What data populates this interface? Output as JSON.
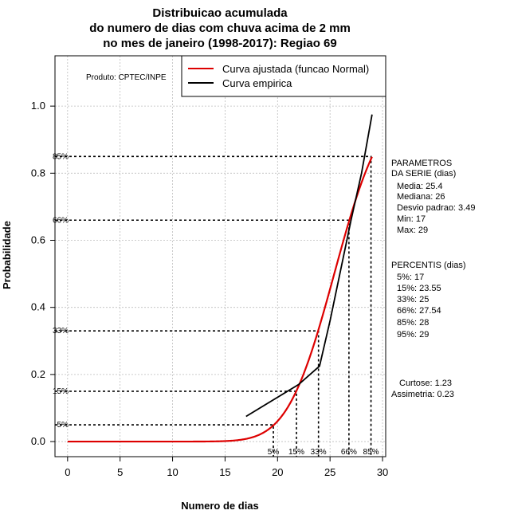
{
  "chart_data": {
    "type": "line",
    "title_lines": [
      "Distribuicao acumulada",
      "do numero de dias com chuva acima de 2 mm",
      "no mes de janeiro (1998-2017): Regiao 69"
    ],
    "xlabel": "Numero de dias",
    "ylabel": "Probabilidade",
    "xlim": [
      -1.2,
      30.3
    ],
    "ylim": [
      -0.045,
      1.15
    ],
    "x_ticks": [
      0,
      5,
      10,
      15,
      20,
      25,
      30
    ],
    "y_ticks": [
      0.0,
      0.2,
      0.4,
      0.6,
      0.8,
      1.0
    ],
    "y_tick_labels": [
      "0.0",
      "0.2",
      "0.4",
      "0.6",
      "0.8",
      "1.0"
    ],
    "grid": true,
    "credit": "Produto: CPTEC/INPE",
    "legend": {
      "position": "top-right",
      "entries": [
        {
          "label": "Curva ajustada (funcao Normal)",
          "color": "#dd0000"
        },
        {
          "label": "Curva empirica",
          "color": "#000000"
        }
      ]
    },
    "series": [
      {
        "name": "Curva ajustada (funcao Normal)",
        "color": "#dd0000",
        "distribution": "normal",
        "mean": 25.4,
        "sd": 3.49,
        "x_range": [
          0,
          29
        ]
      },
      {
        "name": "Curva empirica",
        "color": "#000000",
        "x": [
          17,
          22,
          24,
          25,
          26,
          27,
          28,
          29
        ],
        "y": [
          0.075,
          0.17,
          0.225,
          0.36,
          0.51,
          0.66,
          0.8,
          0.975
        ]
      }
    ],
    "percentile_lines": [
      {
        "label": "5%",
        "p": 0.05,
        "x": 19.6
      },
      {
        "label": "15%",
        "p": 0.15,
        "x": 21.8
      },
      {
        "label": "33%",
        "p": 0.33,
        "x": 23.9
      },
      {
        "label": "66%",
        "p": 0.66,
        "x": 26.8
      },
      {
        "label": "85%",
        "p": 0.85,
        "x": 28.9
      }
    ],
    "parametros": {
      "heading": [
        "PARAMETROS",
        "DA SERIE (dias)"
      ],
      "items": [
        "Media: 25.4",
        "Mediana: 26",
        "Desvio padrao: 3.49",
        "Min: 17",
        "Max: 29"
      ]
    },
    "percentis": {
      "heading": "PERCENTIS (dias)",
      "items": [
        "5%: 17",
        "15%: 23.55",
        "33%: 25",
        "66%: 27.54",
        "85%: 28",
        "95%: 29"
      ]
    },
    "shape": {
      "items": [
        "Curtose: 1.23",
        "Assimetria: 0.23"
      ]
    }
  }
}
